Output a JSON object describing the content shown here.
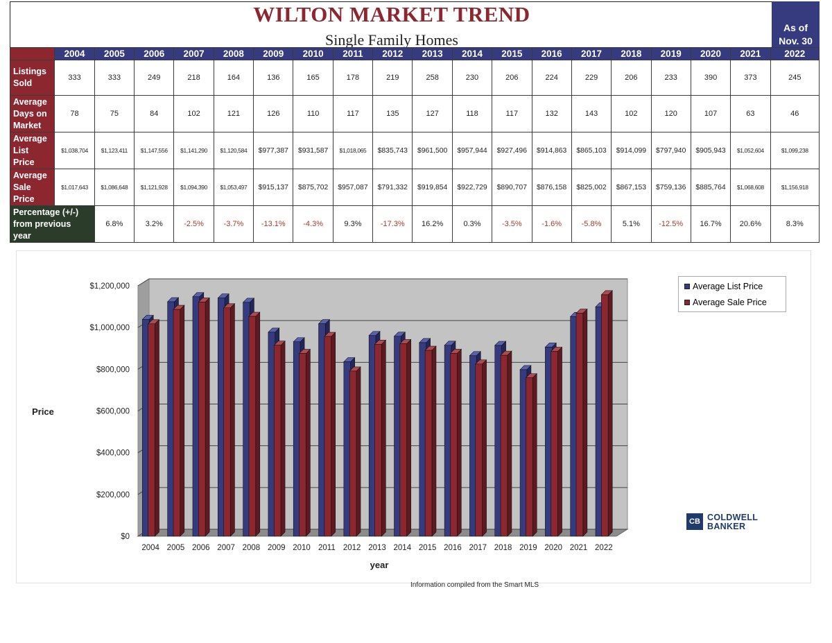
{
  "header": {
    "title": "WILTON MARKET TREND",
    "subtitle": "Single Family Homes",
    "asof_line1": "As of",
    "asof_line2": "Nov. 30"
  },
  "table": {
    "years": [
      "2004",
      "2005",
      "2006",
      "2007",
      "2008",
      "2009",
      "2010",
      "2011",
      "2012",
      "2013",
      "2014",
      "2015",
      "2016",
      "2017",
      "2018",
      "2019",
      "2020",
      "2021",
      "2022"
    ],
    "rows": [
      {
        "label": [
          "Listings",
          "Sold"
        ],
        "values": [
          "333",
          "333",
          "249",
          "218",
          "164",
          "136",
          "165",
          "178",
          "219",
          "258",
          "230",
          "206",
          "224",
          "229",
          "206",
          "233",
          "390",
          "373",
          "245"
        ]
      },
      {
        "label": [
          "Average",
          "Days on",
          "Market"
        ],
        "values": [
          "78",
          "75",
          "84",
          "102",
          "121",
          "126",
          "110",
          "117",
          "135",
          "127",
          "118",
          "117",
          "132",
          "143",
          "102",
          "120",
          "107",
          "63",
          "46"
        ]
      },
      {
        "label": [
          "Average",
          "List",
          "Price"
        ],
        "values": [
          "$1,038,704",
          "$1,123,411",
          "$1,147,556",
          "$1,141,290",
          "$1,120,584",
          "$977,387",
          "$931,587",
          "$1,018,065",
          "$835,743",
          "$961,500",
          "$957,944",
          "$927,496",
          "$914,863",
          "$865,103",
          "$914,099",
          "$797,940",
          "$905,943",
          "$1,052,604",
          "$1,099,238"
        ]
      },
      {
        "label": [
          "Average",
          "Sale",
          "Price"
        ],
        "values": [
          "$1,017,643",
          "$1,086,648",
          "$1,121,928",
          "$1,094,390",
          "$1,053,497",
          "$915,137",
          "$875,702",
          "$957,087",
          "$791,332",
          "$919,854",
          "$922,729",
          "$890,707",
          "$876,158",
          "$825,002",
          "$867,153",
          "$759,136",
          "$885,764",
          "$1,068,608",
          "$1,156,918"
        ]
      },
      {
        "label": [
          "Percentage (+/-)",
          "from previous",
          "year"
        ],
        "values": [
          "",
          "6.8%",
          "3.2%",
          "-2.5%",
          "-3.7%",
          "-13.1%",
          "-4.3%",
          "9.3%",
          "-17.3%",
          "16.2%",
          "0.3%",
          "-3.5%",
          "-1.6%",
          "-5.8%",
          "5.1%",
          "-12.5%",
          "16.7%",
          "20.6%",
          "8.3%"
        ]
      }
    ]
  },
  "chart_data": {
    "type": "bar",
    "categories": [
      "2004",
      "2005",
      "2006",
      "2007",
      "2008",
      "2009",
      "2010",
      "2011",
      "2012",
      "2013",
      "2014",
      "2015",
      "2016",
      "2017",
      "2018",
      "2019",
      "2020",
      "2021",
      "2022"
    ],
    "series": [
      {
        "name": "Average List Price",
        "color": "#363b80",
        "values": [
          1038704,
          1123411,
          1147556,
          1141290,
          1120584,
          977387,
          931587,
          1018065,
          835743,
          961500,
          957944,
          927496,
          914863,
          865103,
          914099,
          797940,
          905943,
          1052604,
          1099238
        ]
      },
      {
        "name": "Average Sale Price",
        "color": "#8c2730",
        "values": [
          1017643,
          1086648,
          1121928,
          1094390,
          1053497,
          915137,
          875702,
          957087,
          791332,
          919854,
          922729,
          890707,
          876158,
          825002,
          867153,
          759136,
          885764,
          1068608,
          1156918
        ]
      }
    ],
    "ylabel": "Price",
    "xlabel": "year",
    "ylim": [
      0,
      1200000
    ],
    "yticks": [
      "$1,200,000",
      "$1,000,000",
      "$800,000",
      "$600,000",
      "$400,000",
      "$200,000",
      "$0"
    ],
    "grid": true,
    "legend_position": "top-right"
  },
  "logo": {
    "line1": "COLDWELL",
    "line2": "BANKER"
  },
  "footnote": "Information compiled from the Smart MLS"
}
